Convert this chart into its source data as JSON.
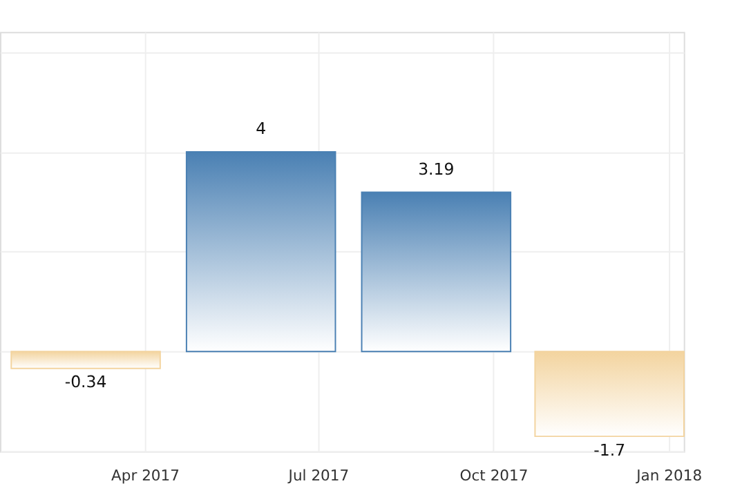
{
  "chart_data": {
    "type": "bar",
    "x": [
      "2017-03-01",
      "2017-06-01",
      "2017-09-01",
      "2017-12-01"
    ],
    "values": [
      -0.34,
      4,
      3.19,
      -1.7
    ],
    "colors": [
      "#f3d49f",
      "#4a80b3",
      "#4a80b3",
      "#f3d49f"
    ],
    "data_labels": true,
    "xlim": [
      "2017-01-15",
      "2018-01-09"
    ],
    "xticks": [
      {
        "value": "2017-04-01",
        "label": "Apr 2017"
      },
      {
        "value": "2017-07-01",
        "label": "Jul 2017"
      },
      {
        "value": "2017-10-01",
        "label": "Oct 2017"
      },
      {
        "value": "2018-01-01",
        "label": "Jan 2018"
      }
    ],
    "ylim": [
      -2,
      6.4
    ],
    "yticks": [
      {
        "value": -2,
        "label": null
      },
      {
        "value": 0,
        "label": null
      },
      {
        "value": 2,
        "label": null
      },
      {
        "value": 4,
        "label": null
      },
      {
        "value": 6,
        "label": null
      }
    ],
    "grid": true,
    "tick_labels": "x"
  }
}
